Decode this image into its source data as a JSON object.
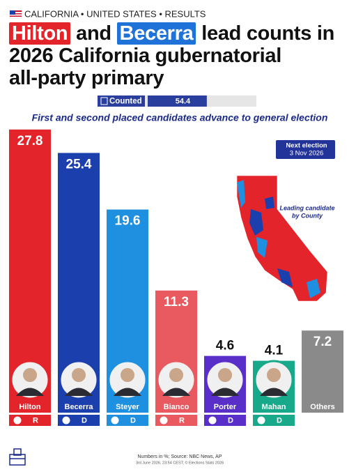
{
  "header": "CALIFORNIA • UNITED STATES • RESULTS",
  "title": {
    "name_1": "Hilton",
    "text_1": "and",
    "name_2": "Becerra",
    "text_2": "lead counts in",
    "line_2": "2026 California gubernatorial",
    "line_3": "all-party primary"
  },
  "counted": {
    "label": "Counted",
    "value": 54.4,
    "xlim": [
      0,
      100
    ]
  },
  "next_election": {
    "label": "Next election",
    "date": "3 Nov 2026"
  },
  "map_label": [
    "Leading candidate",
    "by County"
  ],
  "footer": {
    "source": "Numbers in %; Source: NBC News, AP",
    "timestamp": "3rd June 2026, 23:54 CEST; © Elections Stats 2026"
  },
  "chart_data": {
    "type": "bar",
    "subtitle": "First and second placed candidates advance to general election",
    "categories": [
      "Hilton",
      "Becerra",
      "Steyer",
      "Bianco",
      "Porter",
      "Mahan",
      "Others"
    ],
    "values": [
      27.8,
      25.4,
      19.6,
      11.3,
      4.6,
      4.1,
      7.2
    ],
    "colors": [
      "#e3242b",
      "#1c3fae",
      "#1f8fe0",
      "#e95a60",
      "#5a2ec8",
      "#18a98a",
      "#8a8a8a"
    ],
    "parties": [
      "R",
      "D",
      "D",
      "R",
      "D",
      "D",
      null
    ],
    "ylim": [
      0,
      30
    ]
  }
}
